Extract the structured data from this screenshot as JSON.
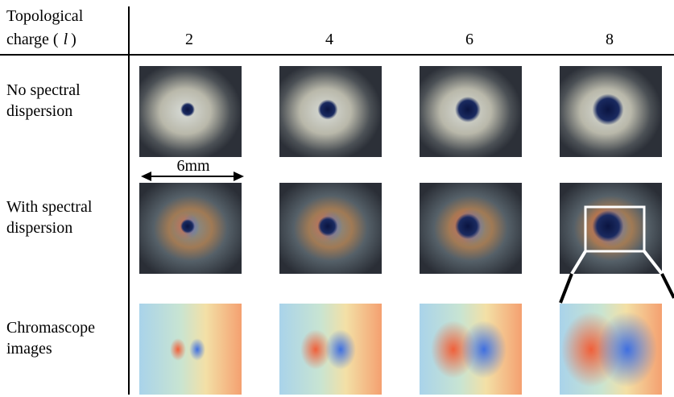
{
  "header": {
    "line1": "Topological",
    "line2_prefix": "charge (",
    "symbol": "l",
    "line2_suffix": ")"
  },
  "columns": [
    "2",
    "4",
    "6",
    "8"
  ],
  "rows": [
    [
      "No spectral",
      "dispersion"
    ],
    [
      "With spectral",
      "dispersion"
    ],
    [
      "Chromascope",
      "images"
    ]
  ],
  "scale_label": "6mm"
}
